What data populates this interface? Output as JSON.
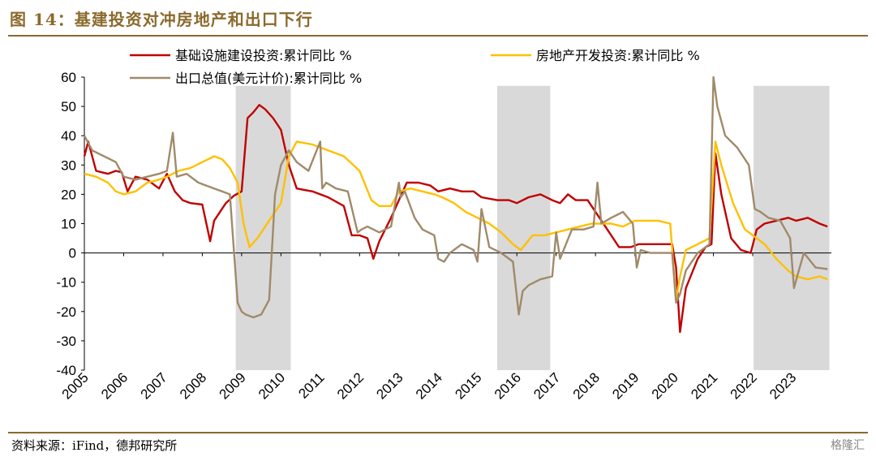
{
  "title": "图 14：基建投资对冲房地产和出口下行",
  "source": "资料来源：iFind，德邦研究所",
  "watermark": "格隆汇",
  "colors": {
    "infra": "#c00000",
    "realestate": "#ffc000",
    "export": "#a08a6a",
    "shade": "#d9d9d9",
    "frame": "#8b6a2d"
  },
  "chart_data": {
    "type": "line",
    "title": "",
    "xlabel": "",
    "ylabel": "",
    "ylim": [
      -40,
      60
    ],
    "yticks": [
      -40,
      -30,
      -20,
      -10,
      0,
      10,
      20,
      30,
      40,
      50,
      60
    ],
    "xlim": [
      2005,
      2024
    ],
    "xticks": [
      "2005",
      "2006",
      "2007",
      "2008",
      "2009",
      "2010",
      "2011",
      "2012",
      "2013",
      "2014",
      "2015",
      "2016",
      "2017",
      "2018",
      "2019",
      "2020",
      "2021",
      "2022",
      "2023"
    ],
    "legend_position": "top",
    "shaded_periods": [
      [
        2008.85,
        2010.25
      ],
      [
        2015.5,
        2016.85
      ],
      [
        2022.02,
        2023.95
      ]
    ],
    "series": [
      {
        "name": "基础设施建设投资:累计同比 %",
        "color": "#c00000",
        "x": [
          2005.0,
          2005.1,
          2005.3,
          2005.6,
          2005.8,
          2005.95,
          2006.1,
          2006.3,
          2006.6,
          2006.9,
          2007.1,
          2007.3,
          2007.5,
          2007.7,
          2008.0,
          2008.2,
          2008.3,
          2008.45,
          2008.6,
          2008.8,
          2009.0,
          2009.15,
          2009.3,
          2009.45,
          2009.6,
          2009.8,
          2010.0,
          2010.2,
          2010.4,
          2010.8,
          2011.2,
          2011.6,
          2011.8,
          2012.0,
          2012.2,
          2012.35,
          2012.5,
          2012.8,
          2013.0,
          2013.2,
          2013.5,
          2013.8,
          2014.0,
          2014.3,
          2014.6,
          2014.9,
          2015.1,
          2015.5,
          2015.8,
          2016.0,
          2016.3,
          2016.6,
          2016.9,
          2017.1,
          2017.3,
          2017.5,
          2017.8,
          2018.0,
          2018.3,
          2018.6,
          2018.9,
          2019.1,
          2019.4,
          2019.7,
          2019.95,
          2020.05,
          2020.15,
          2020.3,
          2020.6,
          2020.8,
          2020.95,
          2021.05,
          2021.2,
          2021.45,
          2021.7,
          2021.95,
          2022.1,
          2022.3,
          2022.6,
          2022.9,
          2023.1,
          2023.4,
          2023.7,
          2023.9
        ],
        "y": [
          33,
          38,
          28,
          27,
          28,
          27.5,
          21,
          26,
          25,
          22,
          27,
          21,
          18,
          17,
          16.5,
          4,
          11,
          14,
          17,
          19.5,
          21,
          46,
          48,
          50.5,
          49,
          46,
          42,
          30,
          22,
          21,
          19,
          16,
          6,
          6,
          5,
          -2,
          4,
          12,
          18,
          24,
          24,
          23,
          21,
          22,
          21,
          21,
          19,
          18,
          18,
          17,
          19,
          20,
          18,
          17,
          20,
          18,
          18,
          14,
          8,
          2,
          2,
          3,
          3,
          3,
          3,
          -5,
          -27,
          -12,
          -2,
          2,
          3,
          34,
          20,
          5,
          1,
          0,
          8,
          10,
          11,
          12,
          11,
          12,
          10,
          9
        ]
      },
      {
        "name": "房地产开发投资:累计同比 %",
        "color": "#ffc000",
        "x": [
          2005.0,
          2005.3,
          2005.6,
          2005.8,
          2006.0,
          2006.3,
          2006.6,
          2006.9,
          2007.1,
          2007.4,
          2007.7,
          2008.0,
          2008.3,
          2008.5,
          2008.7,
          2008.9,
          2009.05,
          2009.2,
          2009.4,
          2009.6,
          2009.8,
          2010.0,
          2010.2,
          2010.4,
          2010.8,
          2011.2,
          2011.6,
          2012.0,
          2012.3,
          2012.5,
          2012.8,
          2013.0,
          2013.3,
          2013.6,
          2013.9,
          2014.1,
          2014.4,
          2014.7,
          2015.0,
          2015.3,
          2015.6,
          2015.9,
          2016.1,
          2016.4,
          2016.7,
          2017.0,
          2017.3,
          2017.6,
          2017.9,
          2018.1,
          2018.4,
          2018.7,
          2019.0,
          2019.3,
          2019.6,
          2019.9,
          2020.05,
          2020.15,
          2020.3,
          2020.6,
          2020.9,
          2021.05,
          2021.2,
          2021.5,
          2021.8,
          2022.0,
          2022.3,
          2022.6,
          2022.9,
          2023.1,
          2023.4,
          2023.7,
          2023.9
        ],
        "y": [
          27,
          26,
          24,
          21,
          20,
          21,
          24,
          25,
          26,
          28,
          29,
          31,
          33,
          32,
          29,
          24,
          10,
          2,
          5,
          9,
          13,
          17,
          33,
          38,
          37,
          35,
          33,
          28,
          18,
          16,
          16,
          21,
          22,
          21,
          20,
          19,
          17,
          14,
          12,
          10,
          7,
          3,
          1,
          6,
          6,
          7,
          8,
          9,
          10,
          10,
          10,
          9,
          11,
          11,
          11,
          10,
          -16,
          -8,
          1,
          3,
          5,
          38,
          30,
          17,
          8,
          6,
          3,
          -2,
          -6,
          -8,
          -9,
          -8,
          -9
        ]
      },
      {
        "name": "出口总值(美元计价):累计同比 %",
        "color": "#a08a6a",
        "x": [
          2005.0,
          2005.2,
          2005.5,
          2005.8,
          2006.0,
          2006.3,
          2006.6,
          2006.9,
          2007.1,
          2007.25,
          2007.35,
          2007.6,
          2007.9,
          2008.1,
          2008.3,
          2008.5,
          2008.7,
          2008.9,
          2009.0,
          2009.1,
          2009.3,
          2009.5,
          2009.7,
          2009.85,
          2010.0,
          2010.2,
          2010.4,
          2010.7,
          2011.0,
          2011.05,
          2011.15,
          2011.4,
          2011.7,
          2011.95,
          2012.05,
          2012.2,
          2012.5,
          2012.8,
          2013.0,
          2013.05,
          2013.15,
          2013.4,
          2013.6,
          2013.9,
          2014.0,
          2014.15,
          2014.3,
          2014.6,
          2014.9,
          2015.0,
          2015.1,
          2015.3,
          2015.6,
          2015.9,
          2016.05,
          2016.15,
          2016.3,
          2016.6,
          2016.9,
          2017.0,
          2017.1,
          2017.4,
          2017.7,
          2017.95,
          2018.05,
          2018.15,
          2018.4,
          2018.7,
          2018.95,
          2019.05,
          2019.15,
          2019.4,
          2019.7,
          2019.95,
          2020.05,
          2020.15,
          2020.3,
          2020.6,
          2020.9,
          2021.0,
          2021.1,
          2021.3,
          2021.6,
          2021.9,
          2022.05,
          2022.2,
          2022.4,
          2022.7,
          2022.95,
          2023.05,
          2023.15,
          2023.3,
          2023.6,
          2023.9
        ],
        "y": [
          40,
          35,
          33,
          31,
          26,
          25,
          26,
          27,
          28,
          41,
          26,
          27,
          24,
          23,
          22,
          21,
          20,
          -17,
          -20,
          -21,
          -22,
          -21,
          -16,
          20,
          30,
          35,
          31,
          28,
          38,
          22,
          24,
          22,
          21,
          7,
          8,
          9,
          7,
          9,
          24,
          19,
          21,
          12,
          8,
          6,
          -2,
          -3,
          0,
          3,
          1,
          -3,
          15,
          2,
          0,
          -3,
          -21,
          -13,
          -11,
          -9,
          -8,
          7,
          -2,
          8,
          8,
          9,
          24,
          10,
          12,
          14,
          10,
          -5,
          1,
          0,
          0,
          0,
          -17,
          -14,
          -6,
          0,
          3,
          60,
          50,
          40,
          36,
          30,
          15,
          14,
          12,
          11,
          5,
          -12,
          -7,
          0,
          -5,
          -5.5
        ]
      }
    ]
  }
}
